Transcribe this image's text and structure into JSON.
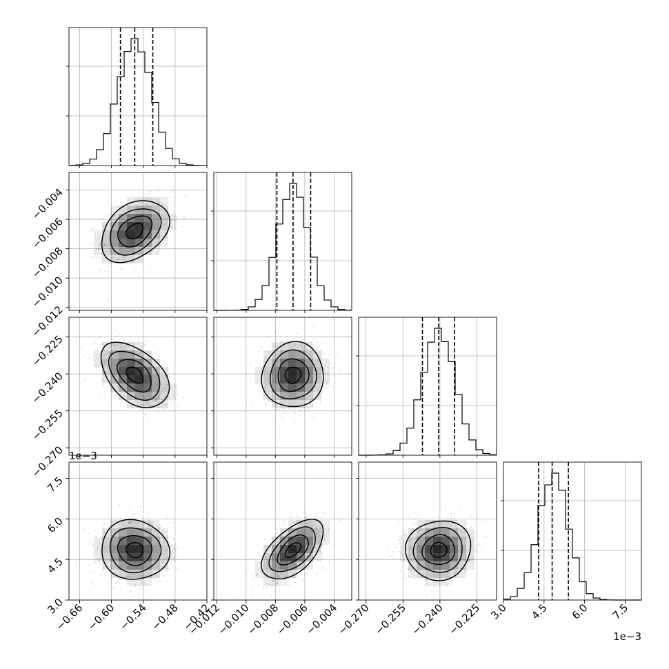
{
  "chart_data": {
    "type": "corner",
    "title": "",
    "n_params": 4,
    "grid": true,
    "colors": {
      "hist": "#000000",
      "contour": "#000000",
      "density": "#000000",
      "grid": "#b0b0b0",
      "points": "#000000"
    },
    "params": [
      {
        "label": "",
        "mean": -0.556,
        "sd": 0.032,
        "range": [
          -0.68,
          -0.42
        ],
        "quantiles": [
          -0.583,
          -0.556,
          -0.522
        ],
        "ticks": [
          -0.66,
          -0.6,
          -0.54,
          -0.48,
          -0.42
        ],
        "tick_labels": [
          "−0.66",
          "−0.60",
          "−0.54",
          "−0.48",
          "−0.42"
        ],
        "offset_label": ""
      },
      {
        "label": "",
        "mean": -0.0068,
        "sd": 0.00105,
        "range": [
          -0.0122,
          -0.0028
        ],
        "quantiles": [
          -0.0079,
          -0.0068,
          -0.0056
        ],
        "ticks": [
          -0.012,
          -0.01,
          -0.008,
          -0.006,
          -0.004
        ],
        "tick_labels": [
          "−0.012",
          "−0.010",
          "−0.008",
          "−0.006",
          "−0.004"
        ],
        "offset_label": ""
      },
      {
        "label": "",
        "mean": -0.2405,
        "sd": 0.0066,
        "range": [
          -0.273,
          -0.217
        ],
        "quantiles": [
          -0.2471,
          -0.2405,
          -0.2341
        ],
        "ticks": [
          -0.27,
          -0.255,
          -0.24,
          -0.225
        ],
        "tick_labels": [
          "−0.270",
          "−0.255",
          "−0.240",
          "−0.225"
        ],
        "offset_label": ""
      },
      {
        "label": "",
        "mean": 4.85,
        "sd": 0.55,
        "range": [
          3.0,
          8.1
        ],
        "quantiles": [
          4.3,
          4.8,
          5.4
        ],
        "ticks": [
          3.0,
          4.5,
          6.0,
          7.5
        ],
        "tick_labels": [
          "3.0",
          "4.5",
          "6.0",
          "7.5"
        ],
        "offset_label": "1e−3"
      }
    ],
    "correlations": [
      {
        "pair": [
          1,
          0
        ],
        "rho": 0.35
      },
      {
        "pair": [
          2,
          0
        ],
        "rho": -0.45
      },
      {
        "pair": [
          2,
          1
        ],
        "rho": 0.05
      },
      {
        "pair": [
          3,
          0
        ],
        "rho": -0.05
      },
      {
        "pair": [
          3,
          1
        ],
        "rho": 0.55
      },
      {
        "pair": [
          3,
          2
        ],
        "rho": 0.05
      }
    ],
    "contour_levels_sigma": [
      0.5,
      1.0,
      1.5,
      2.0
    ]
  }
}
